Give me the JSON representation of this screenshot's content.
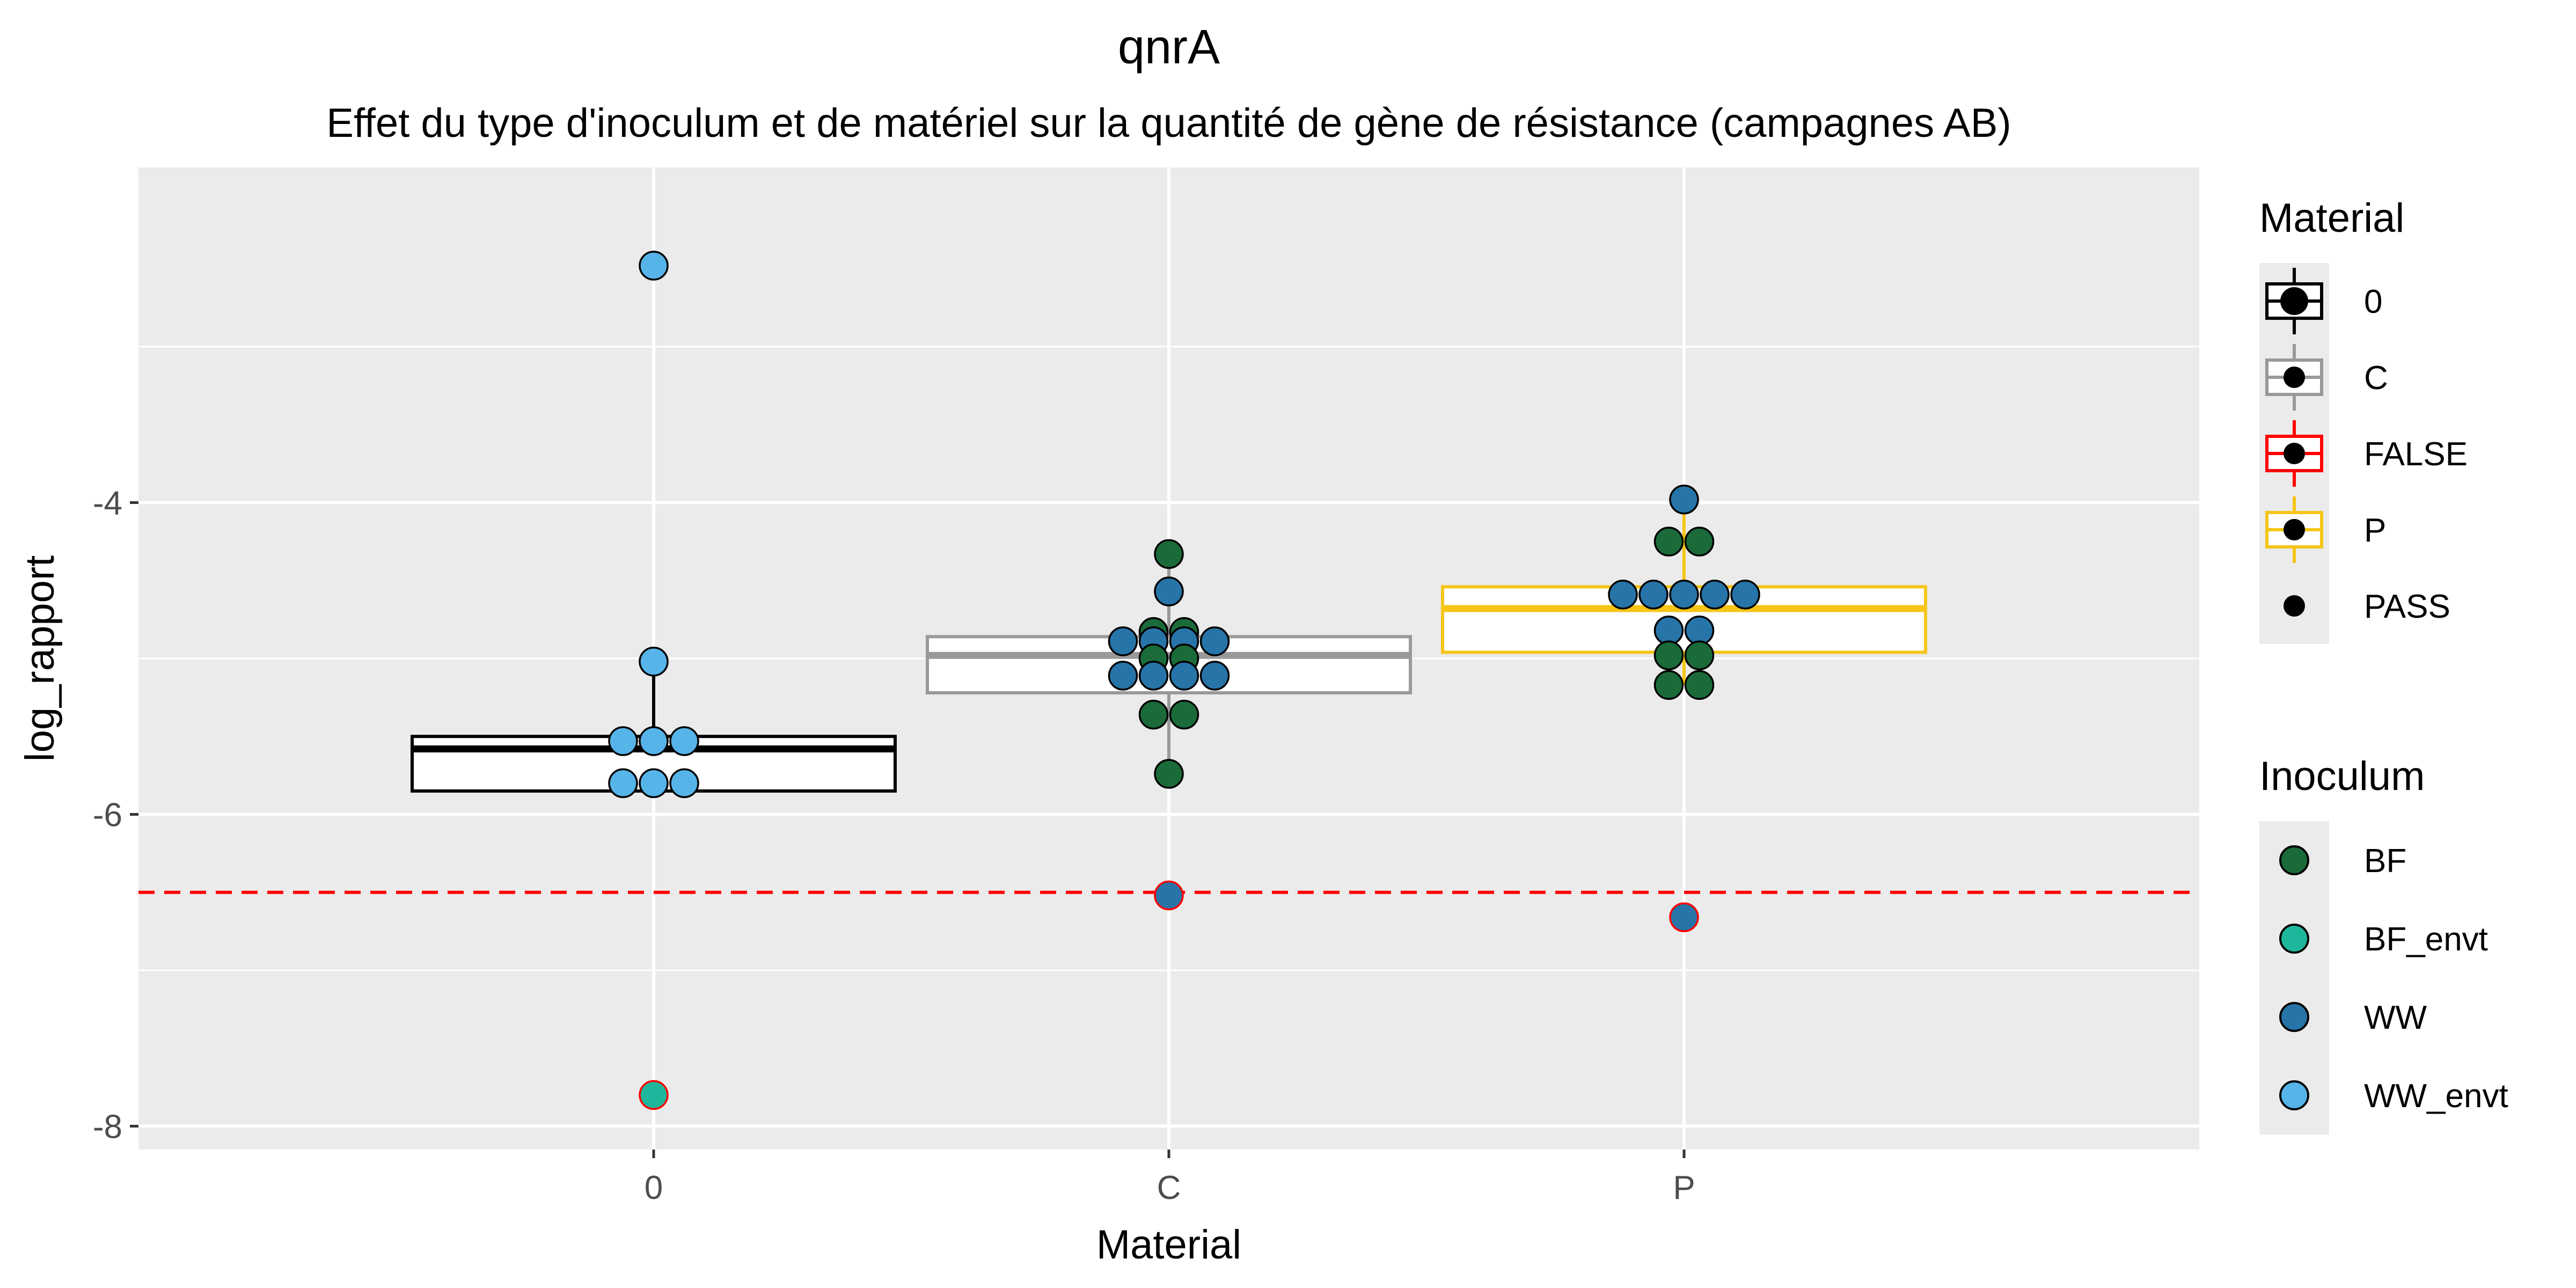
{
  "chart_data": {
    "type": "box+dotplot",
    "title": "qnrA",
    "subtitle": "Effet du type d'inoculum et de matériel sur la quantité de gène de résistance (campagnes AB)",
    "xlabel": "Material",
    "ylabel": "log_rapport",
    "categories": [
      "0",
      "C",
      "P"
    ],
    "ylim": [
      -8.15,
      -1.85
    ],
    "yticks": [
      -8,
      -6,
      -4
    ],
    "grid": true,
    "threshold": {
      "y": -6.5,
      "color": "#ff0000",
      "style": "dashed"
    },
    "boxes": [
      {
        "category": "0",
        "q1": -5.85,
        "median": -5.58,
        "q3": -5.5,
        "whisker_low": -5.85,
        "whisker_high": -5.02,
        "color": "#000000"
      },
      {
        "category": "C",
        "q1": -5.22,
        "median": -4.98,
        "q3": -4.86,
        "whisker_low": -5.72,
        "whisker_high": -4.32,
        "color": "#999999"
      },
      {
        "category": "P",
        "q1": -4.96,
        "median": -4.68,
        "q3": -4.54,
        "whisker_low": -5.17,
        "whisker_high": -3.99,
        "color": "#f5c518"
      }
    ],
    "points": [
      {
        "category": "0",
        "y": -2.48,
        "offset": 0,
        "inoculum": "WW_envt",
        "status": "PASS"
      },
      {
        "category": "0",
        "y": -5.02,
        "offset": 0,
        "inoculum": "WW_envt",
        "status": "PASS"
      },
      {
        "category": "0",
        "y": -5.53,
        "offset": -1,
        "inoculum": "WW_envt",
        "status": "PASS"
      },
      {
        "category": "0",
        "y": -5.53,
        "offset": 0,
        "inoculum": "WW_envt",
        "status": "PASS"
      },
      {
        "category": "0",
        "y": -5.53,
        "offset": 1,
        "inoculum": "WW_envt",
        "status": "PASS"
      },
      {
        "category": "0",
        "y": -5.8,
        "offset": -1,
        "inoculum": "WW_envt",
        "status": "PASS"
      },
      {
        "category": "0",
        "y": -5.8,
        "offset": 0,
        "inoculum": "WW_envt",
        "status": "PASS"
      },
      {
        "category": "0",
        "y": -5.8,
        "offset": 1,
        "inoculum": "WW_envt",
        "status": "PASS"
      },
      {
        "category": "0",
        "y": -7.8,
        "offset": 0,
        "inoculum": "BF_envt",
        "status": "FALSE"
      },
      {
        "category": "C",
        "y": -4.33,
        "offset": 0,
        "inoculum": "BF",
        "status": "PASS"
      },
      {
        "category": "C",
        "y": -4.57,
        "offset": 0,
        "inoculum": "WW",
        "status": "PASS"
      },
      {
        "category": "C",
        "y": -4.83,
        "offset": -0.5,
        "inoculum": "BF",
        "status": "PASS"
      },
      {
        "category": "C",
        "y": -4.83,
        "offset": 0.5,
        "inoculum": "BF",
        "status": "PASS"
      },
      {
        "category": "C",
        "y": -4.89,
        "offset": -1.5,
        "inoculum": "WW",
        "status": "PASS"
      },
      {
        "category": "C",
        "y": -4.89,
        "offset": -0.5,
        "inoculum": "WW",
        "status": "PASS"
      },
      {
        "category": "C",
        "y": -4.89,
        "offset": 0.5,
        "inoculum": "WW",
        "status": "PASS"
      },
      {
        "category": "C",
        "y": -4.89,
        "offset": 1.5,
        "inoculum": "WW",
        "status": "PASS"
      },
      {
        "category": "C",
        "y": -5.0,
        "offset": -0.5,
        "inoculum": "BF",
        "status": "PASS"
      },
      {
        "category": "C",
        "y": -5.0,
        "offset": 0.5,
        "inoculum": "BF",
        "status": "PASS"
      },
      {
        "category": "C",
        "y": -5.11,
        "offset": -1.5,
        "inoculum": "WW",
        "status": "PASS"
      },
      {
        "category": "C",
        "y": -5.11,
        "offset": -0.5,
        "inoculum": "WW",
        "status": "PASS"
      },
      {
        "category": "C",
        "y": -5.11,
        "offset": 0.5,
        "inoculum": "WW",
        "status": "PASS"
      },
      {
        "category": "C",
        "y": -5.11,
        "offset": 1.5,
        "inoculum": "WW",
        "status": "PASS"
      },
      {
        "category": "C",
        "y": -5.36,
        "offset": -0.5,
        "inoculum": "BF",
        "status": "PASS"
      },
      {
        "category": "C",
        "y": -5.36,
        "offset": 0.5,
        "inoculum": "BF",
        "status": "PASS"
      },
      {
        "category": "C",
        "y": -5.74,
        "offset": 0,
        "inoculum": "BF",
        "status": "PASS"
      },
      {
        "category": "C",
        "y": -6.52,
        "offset": 0,
        "inoculum": "WW",
        "status": "FALSE"
      },
      {
        "category": "P",
        "y": -3.98,
        "offset": 0,
        "inoculum": "WW",
        "status": "PASS"
      },
      {
        "category": "P",
        "y": -4.25,
        "offset": -0.5,
        "inoculum": "BF",
        "status": "PASS"
      },
      {
        "category": "P",
        "y": -4.25,
        "offset": 0.5,
        "inoculum": "BF",
        "status": "PASS"
      },
      {
        "category": "P",
        "y": -4.59,
        "offset": -2,
        "inoculum": "WW",
        "status": "PASS"
      },
      {
        "category": "P",
        "y": -4.59,
        "offset": -1,
        "inoculum": "WW",
        "status": "PASS"
      },
      {
        "category": "P",
        "y": -4.59,
        "offset": 0,
        "inoculum": "WW",
        "status": "PASS"
      },
      {
        "category": "P",
        "y": -4.59,
        "offset": 1,
        "inoculum": "WW",
        "status": "PASS"
      },
      {
        "category": "P",
        "y": -4.59,
        "offset": 2,
        "inoculum": "WW",
        "status": "PASS"
      },
      {
        "category": "P",
        "y": -4.82,
        "offset": -0.5,
        "inoculum": "WW",
        "status": "PASS"
      },
      {
        "category": "P",
        "y": -4.82,
        "offset": 0.5,
        "inoculum": "WW",
        "status": "PASS"
      },
      {
        "category": "P",
        "y": -4.98,
        "offset": -0.5,
        "inoculum": "BF",
        "status": "PASS"
      },
      {
        "category": "P",
        "y": -4.98,
        "offset": 0.5,
        "inoculum": "BF",
        "status": "PASS"
      },
      {
        "category": "P",
        "y": -5.17,
        "offset": -0.5,
        "inoculum": "BF",
        "status": "PASS"
      },
      {
        "category": "P",
        "y": -5.17,
        "offset": 0.5,
        "inoculum": "BF",
        "status": "PASS"
      },
      {
        "category": "P",
        "y": -6.66,
        "offset": 0,
        "inoculum": "WW",
        "status": "FALSE"
      }
    ],
    "inoculum_colors": {
      "BF": "#1b6b3a",
      "BF_envt": "#1fb79b",
      "WW": "#2774a8",
      "WW_envt": "#56b4e9"
    },
    "status_colors": {
      "PASS": "#000000",
      "FALSE": "#ff0000"
    },
    "legend": {
      "position": "right",
      "material": {
        "title": "Material",
        "items": [
          {
            "label": "0",
            "color": "#000000",
            "kind": "box"
          },
          {
            "label": "C",
            "color": "#999999",
            "kind": "box"
          },
          {
            "label": "FALSE",
            "color": "#ff0000",
            "kind": "box"
          },
          {
            "label": "P",
            "color": "#f5c518",
            "kind": "box"
          },
          {
            "label": "PASS",
            "color": "#000000",
            "kind": "dot"
          }
        ]
      },
      "inoculum": {
        "title": "Inoculum",
        "items": [
          {
            "label": "BF",
            "color": "#1b6b3a"
          },
          {
            "label": "BF_envt",
            "color": "#1fb79b"
          },
          {
            "label": "WW",
            "color": "#2774a8"
          },
          {
            "label": "WW_envt",
            "color": "#56b4e9"
          }
        ]
      }
    }
  }
}
